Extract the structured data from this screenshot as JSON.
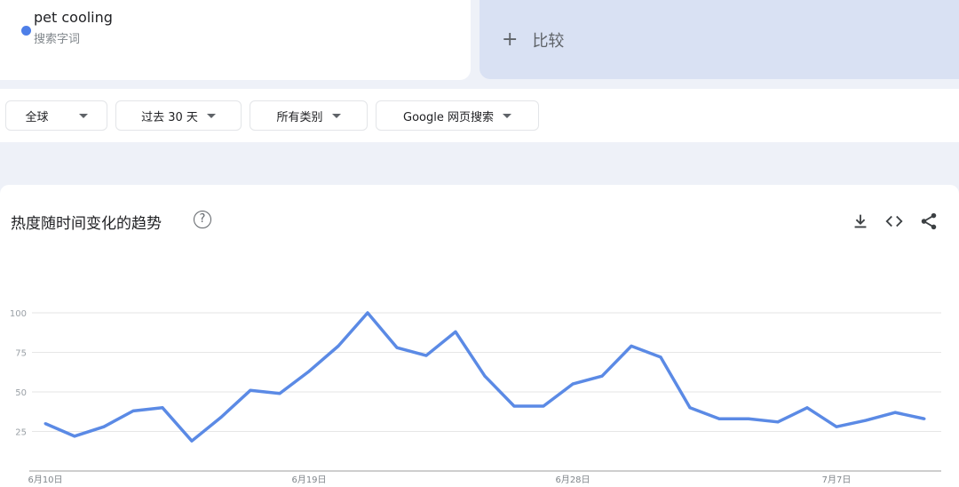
{
  "search_term": {
    "name": "pet cooling",
    "type_label": "搜索字词",
    "color": "#4e7fe8"
  },
  "compare": {
    "label": "比较",
    "icon": "plus-icon"
  },
  "filters": [
    {
      "label": "全球"
    },
    {
      "label": "过去 30 天"
    },
    {
      "label": "所有类别"
    },
    {
      "label": "Google 网页搜索"
    }
  ],
  "chart_card": {
    "title": "热度随时间变化的趋势",
    "help_icon": "?",
    "tools": [
      "download-icon",
      "embed-code-icon",
      "share-icon"
    ]
  },
  "chart_data": {
    "type": "line",
    "title": "",
    "xlabel": "",
    "ylabel": "",
    "ylim": [
      0,
      100
    ],
    "yticks": [
      25,
      50,
      75,
      100
    ],
    "grid": true,
    "line_color": "#5b8ae5",
    "x": [
      "6/10",
      "6/11",
      "6/12",
      "6/13",
      "6/14",
      "6/15",
      "6/16",
      "6/17",
      "6/18",
      "6/19",
      "6/20",
      "6/21",
      "6/22",
      "6/23",
      "6/24",
      "6/25",
      "6/26",
      "6/27",
      "6/28",
      "6/29",
      "6/30",
      "7/1",
      "7/2",
      "7/3",
      "7/4",
      "7/5",
      "7/6",
      "7/7",
      "7/8",
      "7/9",
      "7/10"
    ],
    "xtick_labels": [
      {
        "index": 0,
        "label": "6月10日"
      },
      {
        "index": 9,
        "label": "6月19日"
      },
      {
        "index": 18,
        "label": "6月28日"
      },
      {
        "index": 27,
        "label": "7月7日"
      }
    ],
    "series": [
      {
        "name": "pet cooling",
        "values": [
          30,
          22,
          28,
          38,
          40,
          19,
          34,
          51,
          49,
          63,
          79,
          100,
          78,
          73,
          88,
          60,
          41,
          41,
          55,
          60,
          79,
          72,
          40,
          33,
          33,
          31,
          40,
          28,
          32,
          37,
          33
        ]
      }
    ]
  }
}
